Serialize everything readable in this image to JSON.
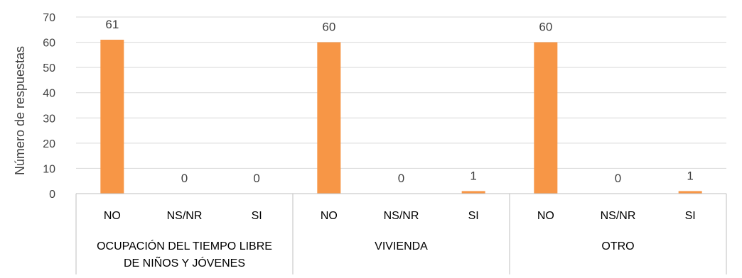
{
  "chart_data": {
    "type": "bar",
    "title": "",
    "xlabel": "",
    "ylabel": "Número de respuestas",
    "ylim": [
      0,
      70
    ],
    "yticks": [
      0,
      10,
      20,
      30,
      40,
      50,
      60,
      70
    ],
    "grid": true,
    "legend": "none",
    "bar_color": "#f79646",
    "groups": [
      {
        "label_lines": [
          "OCUPACIÓN DEL TIEMPO LIBRE",
          "DE NIÑOS Y JÓVENES"
        ],
        "categories": [
          "NO",
          "NS/NR",
          "SI"
        ],
        "values": [
          61,
          0,
          0
        ]
      },
      {
        "label_lines": [
          "VIVIENDA"
        ],
        "categories": [
          "NO",
          "NS/NR",
          "SI"
        ],
        "values": [
          60,
          0,
          1
        ]
      },
      {
        "label_lines": [
          "OTRO"
        ],
        "categories": [
          "NO",
          "NS/NR",
          "SI"
        ],
        "values": [
          60,
          0,
          1
        ]
      }
    ]
  }
}
